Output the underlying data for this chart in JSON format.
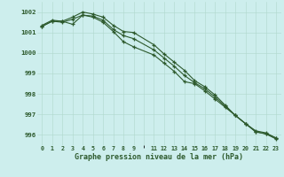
{
  "title": "Graphe pression niveau de la mer (hPa)",
  "background_color": "#cdeeed",
  "grid_color": "#b0d8cc",
  "line_color": "#2d5a2d",
  "hours": [
    0,
    1,
    2,
    3,
    4,
    5,
    6,
    7,
    8,
    9,
    10,
    11,
    12,
    13,
    14,
    15,
    16,
    17,
    18,
    19,
    20,
    21,
    22,
    23
  ],
  "series1": [
    1001.3,
    1001.55,
    1001.55,
    1001.4,
    1001.85,
    1001.75,
    1001.5,
    1001.05,
    1000.55,
    1000.3,
    null,
    999.9,
    999.5,
    999.1,
    998.6,
    998.5,
    998.15,
    997.75,
    997.35,
    996.95,
    996.55,
    996.2,
    996.1,
    995.85
  ],
  "series2": [
    1001.35,
    1001.6,
    1001.55,
    1001.75,
    1002.0,
    1001.9,
    1001.75,
    1001.35,
    1001.05,
    1001.0,
    null,
    1000.4,
    999.95,
    999.55,
    999.15,
    998.65,
    998.35,
    997.95,
    997.45,
    996.95,
    996.55,
    996.15,
    996.05,
    995.8
  ],
  "series3": [
    1001.3,
    1001.55,
    1001.5,
    1001.65,
    1001.85,
    1001.8,
    1001.6,
    1001.15,
    1000.85,
    1000.7,
    null,
    1000.15,
    999.75,
    999.35,
    998.9,
    998.55,
    998.25,
    997.85,
    997.4,
    996.95,
    996.55,
    996.15,
    996.05,
    995.85
  ],
  "ylim": [
    995.5,
    1002.5
  ],
  "yticks": [
    996,
    997,
    998,
    999,
    1000,
    1001,
    1002
  ],
  "xlim": [
    -0.5,
    23.5
  ],
  "xticks": [
    0,
    1,
    2,
    3,
    4,
    5,
    6,
    7,
    8,
    9,
    11,
    12,
    13,
    14,
    15,
    16,
    17,
    18,
    19,
    20,
    21,
    22,
    23
  ],
  "xtick_labels": [
    "0",
    "1",
    "2",
    "3",
    "4",
    "5",
    "6",
    "7",
    "8",
    "9",
    "11",
    "12",
    "13",
    "14",
    "15",
    "16",
    "17",
    "18",
    "19",
    "20",
    "21",
    "22",
    "23"
  ]
}
